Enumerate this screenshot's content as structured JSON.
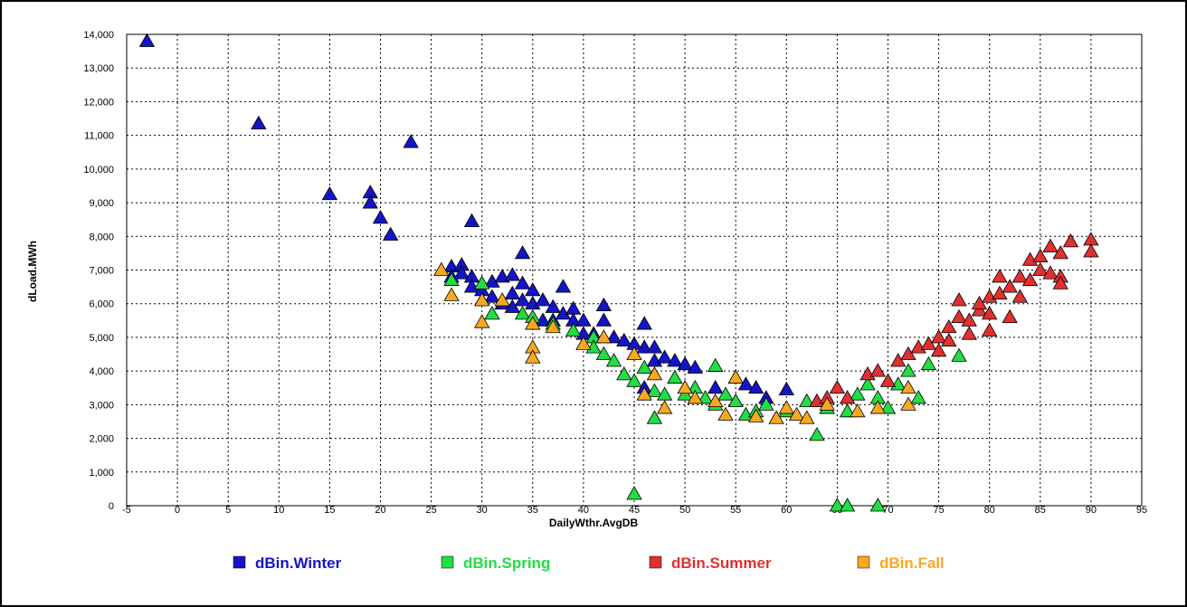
{
  "chart_data": {
    "type": "scatter",
    "x_label": "DailyWthr.AvgDB",
    "y_label": "dLoad.MWh",
    "grid": true,
    "xlim": [
      -5,
      95
    ],
    "xticks": [
      -5,
      0,
      5,
      10,
      15,
      20,
      25,
      30,
      35,
      40,
      45,
      50,
      55,
      60,
      65,
      70,
      75,
      80,
      85,
      90,
      95
    ],
    "ylim": [
      0,
      14000
    ],
    "yticks": [
      0,
      {
        "value": 1000,
        "label": "1,000"
      },
      {
        "value": 2000,
        "label": "2,000"
      },
      {
        "value": 3000,
        "label": "3,000"
      },
      {
        "value": 4000,
        "label": "4,000"
      },
      {
        "value": 5000,
        "label": "5,000"
      },
      {
        "value": 6000,
        "label": "6,000"
      },
      {
        "value": 7000,
        "label": "7,000"
      },
      {
        "value": 8000,
        "label": "8,000"
      },
      {
        "value": 9000,
        "label": "9,000"
      },
      {
        "value": 10000,
        "label": "10,000"
      },
      {
        "value": 11000,
        "label": "11,000"
      },
      {
        "value": 12000,
        "label": "12,000"
      },
      {
        "value": 13000,
        "label": "13,000"
      },
      {
        "value": 14000,
        "label": "14,000"
      }
    ],
    "series": [
      {
        "name": "dBin.Winter",
        "color": "#1414c8",
        "x": [
          -3,
          8,
          15,
          19,
          19,
          20,
          21,
          23,
          27,
          27,
          28,
          28,
          29,
          29,
          29,
          30,
          31,
          31,
          32,
          32,
          33,
          33,
          33,
          34,
          34,
          34,
          35,
          35,
          36,
          36,
          37,
          37,
          38,
          38,
          39,
          39,
          40,
          40,
          41,
          42,
          42,
          43,
          44,
          45,
          46,
          46,
          47,
          47,
          48,
          49,
          50,
          51,
          53,
          55,
          56,
          57,
          58,
          60,
          46
        ],
        "values": [
          13800,
          11350,
          9250,
          9300,
          9000,
          8550,
          8050,
          10800,
          7100,
          6800,
          7150,
          6900,
          8450,
          6800,
          6500,
          6400,
          6650,
          6200,
          6800,
          6000,
          6850,
          6300,
          5900,
          7500,
          6600,
          6100,
          6400,
          6000,
          6100,
          5500,
          5900,
          5500,
          6500,
          5700,
          5850,
          5500,
          5500,
          5100,
          5100,
          5950,
          5500,
          5000,
          4900,
          4800,
          5400,
          4700,
          4700,
          4300,
          4400,
          4300,
          4200,
          4100,
          3500,
          3800,
          3600,
          3500,
          3200,
          3450,
          3500
        ]
      },
      {
        "name": "dBin.Spring",
        "color": "#22dd44",
        "x": [
          27,
          30,
          31,
          34,
          35,
          37,
          39,
          41,
          41,
          42,
          43,
          44,
          45,
          45,
          46,
          47,
          47,
          48,
          49,
          50,
          51,
          52,
          53,
          53,
          54,
          55,
          56,
          57,
          58,
          60,
          62,
          63,
          64,
          65,
          66,
          66,
          67,
          68,
          69,
          69,
          70,
          71,
          72,
          73,
          74,
          77
        ],
        "values": [
          6700,
          6600,
          5700,
          5700,
          5600,
          5400,
          5200,
          5000,
          4700,
          4500,
          4300,
          3900,
          350,
          3700,
          4100,
          2600,
          3400,
          3300,
          3800,
          3300,
          3500,
          3200,
          4150,
          3000,
          3300,
          3100,
          2700,
          2800,
          3000,
          2800,
          3100,
          2100,
          2900,
          0,
          0,
          2800,
          3300,
          3600,
          0,
          3200,
          2900,
          3600,
          4000,
          3200,
          4200,
          4450
        ]
      },
      {
        "name": "dBin.Summer",
        "color": "#e03030",
        "x": [
          63,
          64,
          65,
          66,
          68,
          69,
          70,
          71,
          72,
          73,
          74,
          75,
          75,
          76,
          76,
          77,
          77,
          78,
          78,
          79,
          79,
          80,
          80,
          81,
          81,
          82,
          82,
          83,
          83,
          84,
          84,
          85,
          85,
          86,
          86,
          87,
          87,
          87,
          88,
          90,
          90,
          80
        ],
        "values": [
          3100,
          3200,
          3500,
          3200,
          3900,
          4000,
          3700,
          4300,
          4500,
          4700,
          4800,
          5000,
          4600,
          5300,
          4900,
          6100,
          5600,
          5500,
          5100,
          5800,
          6000,
          6200,
          5700,
          6800,
          6300,
          6500,
          5600,
          6200,
          6800,
          7300,
          6700,
          7000,
          7400,
          7700,
          6900,
          7500,
          6800,
          6600,
          7850,
          7900,
          7550,
          5200
        ]
      },
      {
        "name": "dBin.Fall",
        "color": "#f8a820",
        "x": [
          26,
          27,
          30,
          30,
          32,
          35,
          35,
          35,
          37,
          40,
          42,
          45,
          46,
          47,
          48,
          50,
          51,
          53,
          54,
          55,
          57,
          59,
          60,
          61,
          62,
          64,
          67,
          69,
          72,
          72
        ],
        "values": [
          7000,
          6250,
          5450,
          6100,
          6100,
          5400,
          4700,
          4400,
          5300,
          4800,
          5000,
          4500,
          3300,
          3900,
          2900,
          3500,
          3200,
          3100,
          2700,
          3800,
          2650,
          2600,
          2900,
          2700,
          2600,
          3000,
          2800,
          2900,
          3000,
          3500
        ]
      }
    ]
  }
}
